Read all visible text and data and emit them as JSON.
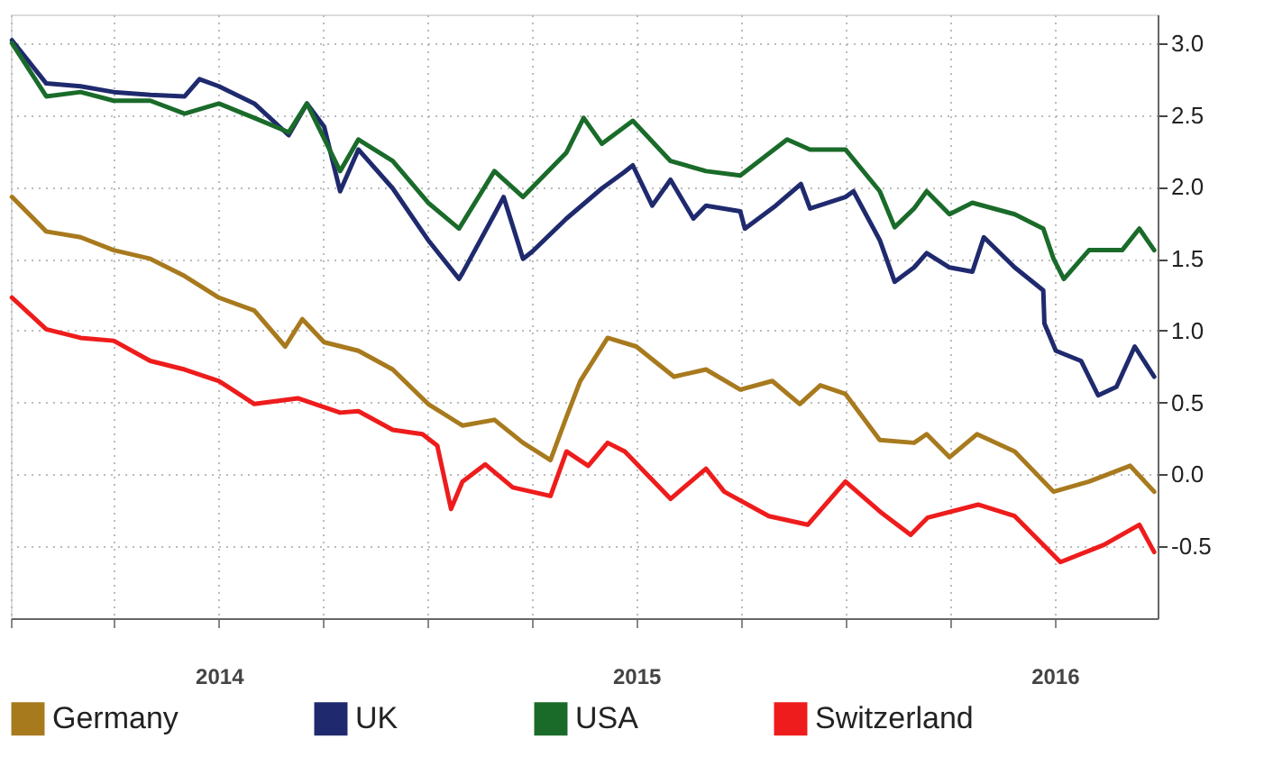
{
  "chart_data": {
    "type": "line",
    "xlim": [
      "2014-01-01",
      "2016-09-30"
    ],
    "ylim": [
      -1.0,
      3.2
    ],
    "yticks": [
      {
        "value": -0.5,
        "label": "-0.5"
      },
      {
        "value": 0,
        "label": "0.0"
      },
      {
        "value": 0.5,
        "label": "0.5"
      },
      {
        "value": 1,
        "label": "1.0"
      },
      {
        "value": 1.5,
        "label": "1.5"
      },
      {
        "value": 2,
        "label": "2.0"
      },
      {
        "value": 2.5,
        "label": "2.5"
      },
      {
        "value": 3,
        "label": "3.0"
      }
    ],
    "xticks": [
      {
        "value": "2014-01-01",
        "label": null
      },
      {
        "value": "2014-04-01",
        "label": null
      },
      {
        "value": "2014-07-02",
        "label": "2014"
      },
      {
        "value": "2014-10-01",
        "label": null
      },
      {
        "value": "2015-01-01",
        "label": null
      },
      {
        "value": "2015-04-01",
        "label": null
      },
      {
        "value": "2015-07-02",
        "label": "2015"
      },
      {
        "value": "2015-10-01",
        "label": null
      },
      {
        "value": "2016-01-01",
        "label": null
      },
      {
        "value": "2016-04-01",
        "label": null
      },
      {
        "value": "2016-07-02",
        "label": "2016"
      }
    ],
    "grid": true,
    "legend": "bottom",
    "line_style": "solid",
    "marker": "none",
    "series": [
      {
        "name": "Germany",
        "color": "#a87a1e",
        "x": [
          "2014-01-02",
          "2014-02-01",
          "2014-03-03",
          "2014-04-01",
          "2014-05-03",
          "2014-06-02",
          "2014-07-02",
          "2014-08-02",
          "2014-08-29",
          "2014-09-13",
          "2014-10-02",
          "2014-11-01",
          "2014-12-01",
          "2015-01-01",
          "2015-01-31",
          "2015-02-28",
          "2015-03-25",
          "2015-04-18",
          "2015-05-02",
          "2015-05-14",
          "2015-06-07",
          "2015-07-02",
          "2015-08-04",
          "2015-09-01",
          "2015-10-01",
          "2015-10-29",
          "2015-11-22",
          "2015-12-10",
          "2016-01-01",
          "2016-01-31",
          "2016-03-01",
          "2016-03-12",
          "2016-04-01",
          "2016-04-25",
          "2016-05-28",
          "2016-07-01",
          "2016-08-01",
          "2016-09-06",
          "2016-09-27"
        ],
        "values": [
          1.93,
          1.69,
          1.65,
          1.56,
          1.5,
          1.38,
          1.23,
          1.14,
          0.89,
          1.08,
          0.92,
          0.86,
          0.73,
          0.49,
          0.34,
          0.38,
          0.22,
          0.1,
          0.4,
          0.65,
          0.95,
          0.89,
          0.68,
          0.73,
          0.59,
          0.65,
          0.49,
          0.62,
          0.56,
          0.24,
          0.22,
          0.28,
          0.12,
          0.28,
          0.16,
          -0.12,
          -0.05,
          0.06,
          -0.12
        ]
      },
      {
        "name": "UK",
        "color": "#1f2a6e",
        "x": [
          "2014-01-02",
          "2014-02-01",
          "2014-03-03",
          "2014-04-01",
          "2014-05-03",
          "2014-06-02",
          "2014-06-15",
          "2014-07-02",
          "2014-08-02",
          "2014-09-01",
          "2014-09-17",
          "2014-10-02",
          "2014-10-16",
          "2014-11-01",
          "2014-12-01",
          "2015-01-01",
          "2015-01-28",
          "2015-01-31",
          "2015-02-28",
          "2015-03-08",
          "2015-03-25",
          "2015-04-02",
          "2015-05-02",
          "2015-06-02",
          "2015-06-21",
          "2015-06-29",
          "2015-07-16",
          "2015-08-01",
          "2015-08-21",
          "2015-09-01",
          "2015-10-01",
          "2015-10-05",
          "2015-11-01",
          "2015-11-23",
          "2015-12-01",
          "2016-01-01",
          "2016-01-08",
          "2016-01-31",
          "2016-02-13",
          "2016-03-01",
          "2016-03-12",
          "2016-04-01",
          "2016-04-21",
          "2016-05-01",
          "2016-05-28",
          "2016-06-22",
          "2016-06-23",
          "2016-07-03",
          "2016-07-25",
          "2016-08-09",
          "2016-08-25",
          "2016-09-10",
          "2016-09-27"
        ],
        "values": [
          3.02,
          2.72,
          2.7,
          2.66,
          2.64,
          2.63,
          2.75,
          2.7,
          2.58,
          2.36,
          2.58,
          2.42,
          1.97,
          2.26,
          1.99,
          1.63,
          1.36,
          1.4,
          1.81,
          1.93,
          1.5,
          1.55,
          1.78,
          1.99,
          2.1,
          2.15,
          1.87,
          2.05,
          1.78,
          1.87,
          1.83,
          1.71,
          1.87,
          2.02,
          1.85,
          1.93,
          1.97,
          1.63,
          1.34,
          1.44,
          1.54,
          1.44,
          1.41,
          1.65,
          1.44,
          1.28,
          1.05,
          0.86,
          0.79,
          0.55,
          0.61,
          0.89,
          0.68
        ]
      },
      {
        "name": "USA",
        "color": "#1a6b2a",
        "x": [
          "2014-01-02",
          "2014-02-01",
          "2014-03-03",
          "2014-04-01",
          "2014-05-03",
          "2014-06-02",
          "2014-07-02",
          "2014-08-02",
          "2014-09-01",
          "2014-09-17",
          "2014-10-16",
          "2014-11-01",
          "2014-12-01",
          "2015-01-01",
          "2015-01-28",
          "2015-02-28",
          "2015-03-25",
          "2015-05-02",
          "2015-05-17",
          "2015-06-02",
          "2015-06-29",
          "2015-08-01",
          "2015-09-01",
          "2015-10-01",
          "2015-11-11",
          "2015-12-01",
          "2016-01-01",
          "2016-01-31",
          "2016-02-13",
          "2016-03-01",
          "2016-03-12",
          "2016-04-01",
          "2016-04-21",
          "2016-05-28",
          "2016-06-22",
          "2016-07-01",
          "2016-07-10",
          "2016-08-01",
          "2016-08-30",
          "2016-09-14",
          "2016-09-27"
        ],
        "values": [
          3.0,
          2.63,
          2.66,
          2.6,
          2.6,
          2.51,
          2.58,
          2.48,
          2.38,
          2.58,
          2.11,
          2.33,
          2.18,
          1.89,
          1.71,
          2.11,
          1.93,
          2.24,
          2.48,
          2.3,
          2.46,
          2.18,
          2.11,
          2.08,
          2.33,
          2.26,
          2.26,
          1.97,
          1.72,
          1.85,
          1.97,
          1.81,
          1.89,
          1.81,
          1.71,
          1.5,
          1.36,
          1.56,
          1.56,
          1.71,
          1.56
        ]
      },
      {
        "name": "Switzerland",
        "color": "#ee1c1c",
        "x": [
          "2014-01-02",
          "2014-02-01",
          "2014-03-03",
          "2014-04-01",
          "2014-05-03",
          "2014-06-02",
          "2014-07-02",
          "2014-08-02",
          "2014-09-09",
          "2014-10-16",
          "2014-11-01",
          "2014-12-01",
          "2014-12-27",
          "2015-01-09",
          "2015-01-21",
          "2015-01-31",
          "2015-02-20",
          "2015-03-16",
          "2015-04-18",
          "2015-05-02",
          "2015-05-21",
          "2015-06-07",
          "2015-06-22",
          "2015-08-01",
          "2015-09-01",
          "2015-09-17",
          "2015-10-26",
          "2015-11-29",
          "2016-01-01",
          "2016-02-02",
          "2016-02-27",
          "2016-03-13",
          "2016-04-26",
          "2016-05-28",
          "2016-07-07",
          "2016-08-14",
          "2016-09-14",
          "2016-09-27"
        ],
        "values": [
          1.23,
          1.01,
          0.95,
          0.93,
          0.79,
          0.73,
          0.65,
          0.49,
          0.53,
          0.43,
          0.44,
          0.31,
          0.28,
          0.2,
          -0.24,
          -0.05,
          0.07,
          -0.09,
          -0.15,
          0.16,
          0.06,
          0.22,
          0.16,
          -0.17,
          0.04,
          -0.12,
          -0.29,
          -0.35,
          -0.05,
          -0.27,
          -0.42,
          -0.3,
          -0.21,
          -0.29,
          -0.61,
          -0.49,
          -0.35,
          -0.54
        ]
      }
    ]
  }
}
